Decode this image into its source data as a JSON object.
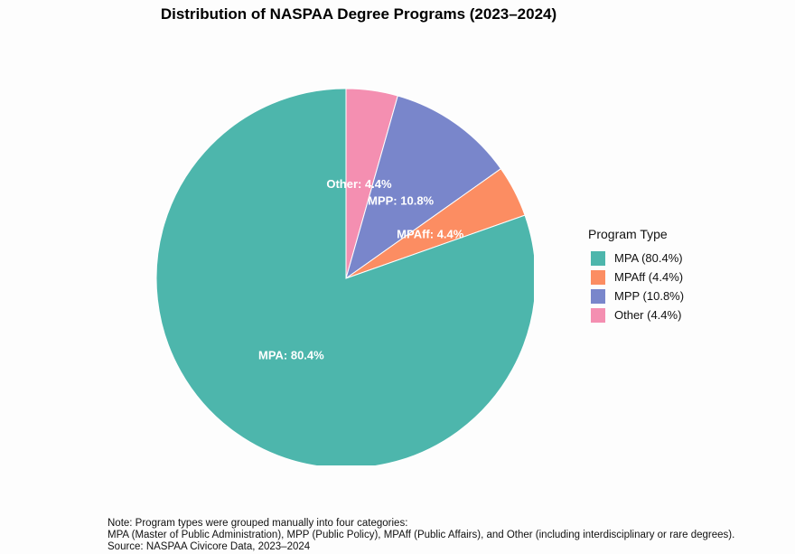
{
  "chart_data": {
    "type": "pie",
    "title": "Distribution of NASPAA Degree Programs (2023–2024)",
    "legend_title": "Program Type",
    "legend_placement": "right",
    "slices": [
      {
        "label": "MPA",
        "value": 80.4,
        "slice_label": "MPA: 80.4%",
        "legend_label": "MPA (80.4%)",
        "color": "#4DB6AC"
      },
      {
        "label": "MPAff",
        "value": 4.4,
        "slice_label": "MPAff: 4.4%",
        "legend_label": "MPAff (4.4%)",
        "color": "#FC8D62"
      },
      {
        "label": "MPP",
        "value": 10.8,
        "slice_label": "MPP: 10.8%",
        "legend_label": "MPP (10.8%)",
        "color": "#7986CB"
      },
      {
        "label": "Other",
        "value": 4.4,
        "slice_label": "Other: 4.4%",
        "legend_label": "Other (4.4%)",
        "color": "#F48FB1"
      }
    ],
    "notes": [
      "Note: Program types were grouped manually into four categories:",
      "MPA (Master of Public Administration), MPP (Public Policy), MPAff (Public Affairs), and Other (including interdisciplinary or rare degrees).",
      "Source: NASPAA Civicore Data, 2023–2024"
    ]
  }
}
